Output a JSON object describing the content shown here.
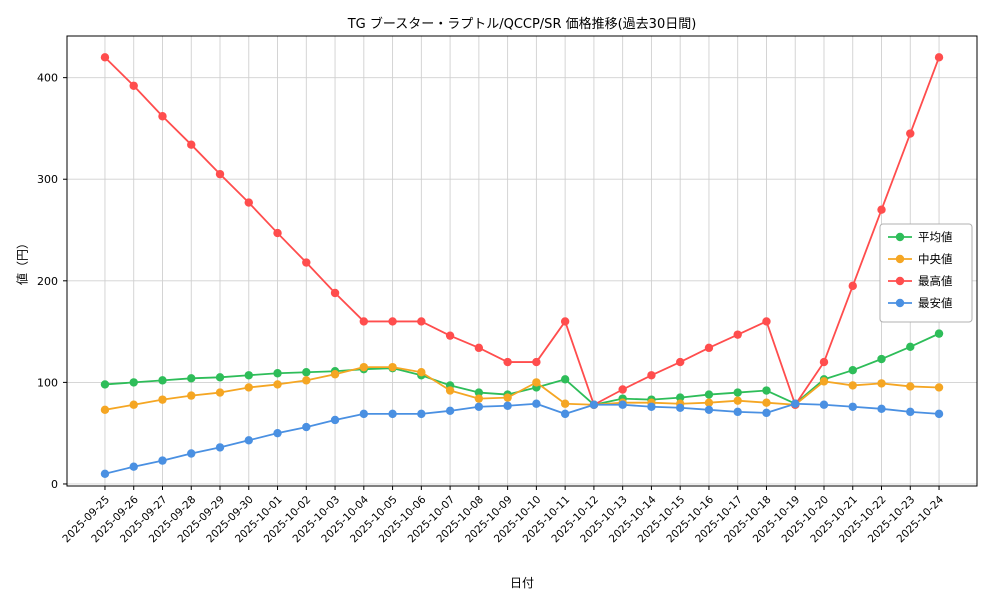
{
  "chart_data": {
    "type": "line",
    "title": "TG ブースター・ラプトル/QCCP/SR 価格推移(過去30日間)",
    "xlabel": "日付",
    "ylabel": "値（円）",
    "ylim": [
      -2,
      441
    ],
    "yticks": [
      0,
      100,
      200,
      300,
      400
    ],
    "grid": true,
    "legend_position": "center-right",
    "categories": [
      "2025-09-25",
      "2025-09-26",
      "2025-09-27",
      "2025-09-28",
      "2025-09-29",
      "2025-09-30",
      "2025-10-01",
      "2025-10-02",
      "2025-10-03",
      "2025-10-04",
      "2025-10-05",
      "2025-10-06",
      "2025-10-07",
      "2025-10-08",
      "2025-10-09",
      "2025-10-10",
      "2025-10-11",
      "2025-10-12",
      "2025-10-13",
      "2025-10-14",
      "2025-10-15",
      "2025-10-16",
      "2025-10-17",
      "2025-10-18",
      "2025-10-19",
      "2025-10-20",
      "2025-10-21",
      "2025-10-22",
      "2025-10-23",
      "2025-10-24"
    ],
    "series": [
      {
        "key": "average",
        "name": "平均値",
        "color": "#2ebd59",
        "values": [
          98,
          100,
          102,
          104,
          105,
          107,
          109,
          110,
          111,
          113,
          114,
          107,
          97,
          90,
          88,
          95,
          103,
          78,
          84,
          83,
          85,
          88,
          90,
          92,
          79,
          103,
          112,
          123,
          135,
          148
        ]
      },
      {
        "key": "median",
        "name": "中央値",
        "color": "#f5a623",
        "values": [
          73,
          78,
          83,
          87,
          90,
          95,
          98,
          102,
          108,
          115,
          115,
          110,
          92,
          84,
          85,
          100,
          79,
          78,
          80,
          80,
          79,
          80,
          82,
          80,
          78,
          101,
          97,
          99,
          96,
          95
        ]
      },
      {
        "key": "max",
        "name": "最高値",
        "color": "#ff4d4d",
        "values": [
          420,
          392,
          362,
          334,
          305,
          277,
          247,
          218,
          188,
          160,
          160,
          160,
          146,
          134,
          120,
          120,
          160,
          78,
          93,
          107,
          120,
          134,
          147,
          160,
          78,
          120,
          195,
          270,
          345,
          420
        ]
      },
      {
        "key": "min",
        "name": "最安値",
        "color": "#4a90e2",
        "values": [
          10,
          17,
          23,
          30,
          36,
          43,
          50,
          56,
          63,
          69,
          69,
          69,
          72,
          76,
          77,
          79,
          69,
          78,
          78,
          76,
          75,
          73,
          71,
          70,
          79,
          78,
          76,
          74,
          71,
          69
        ]
      }
    ]
  }
}
